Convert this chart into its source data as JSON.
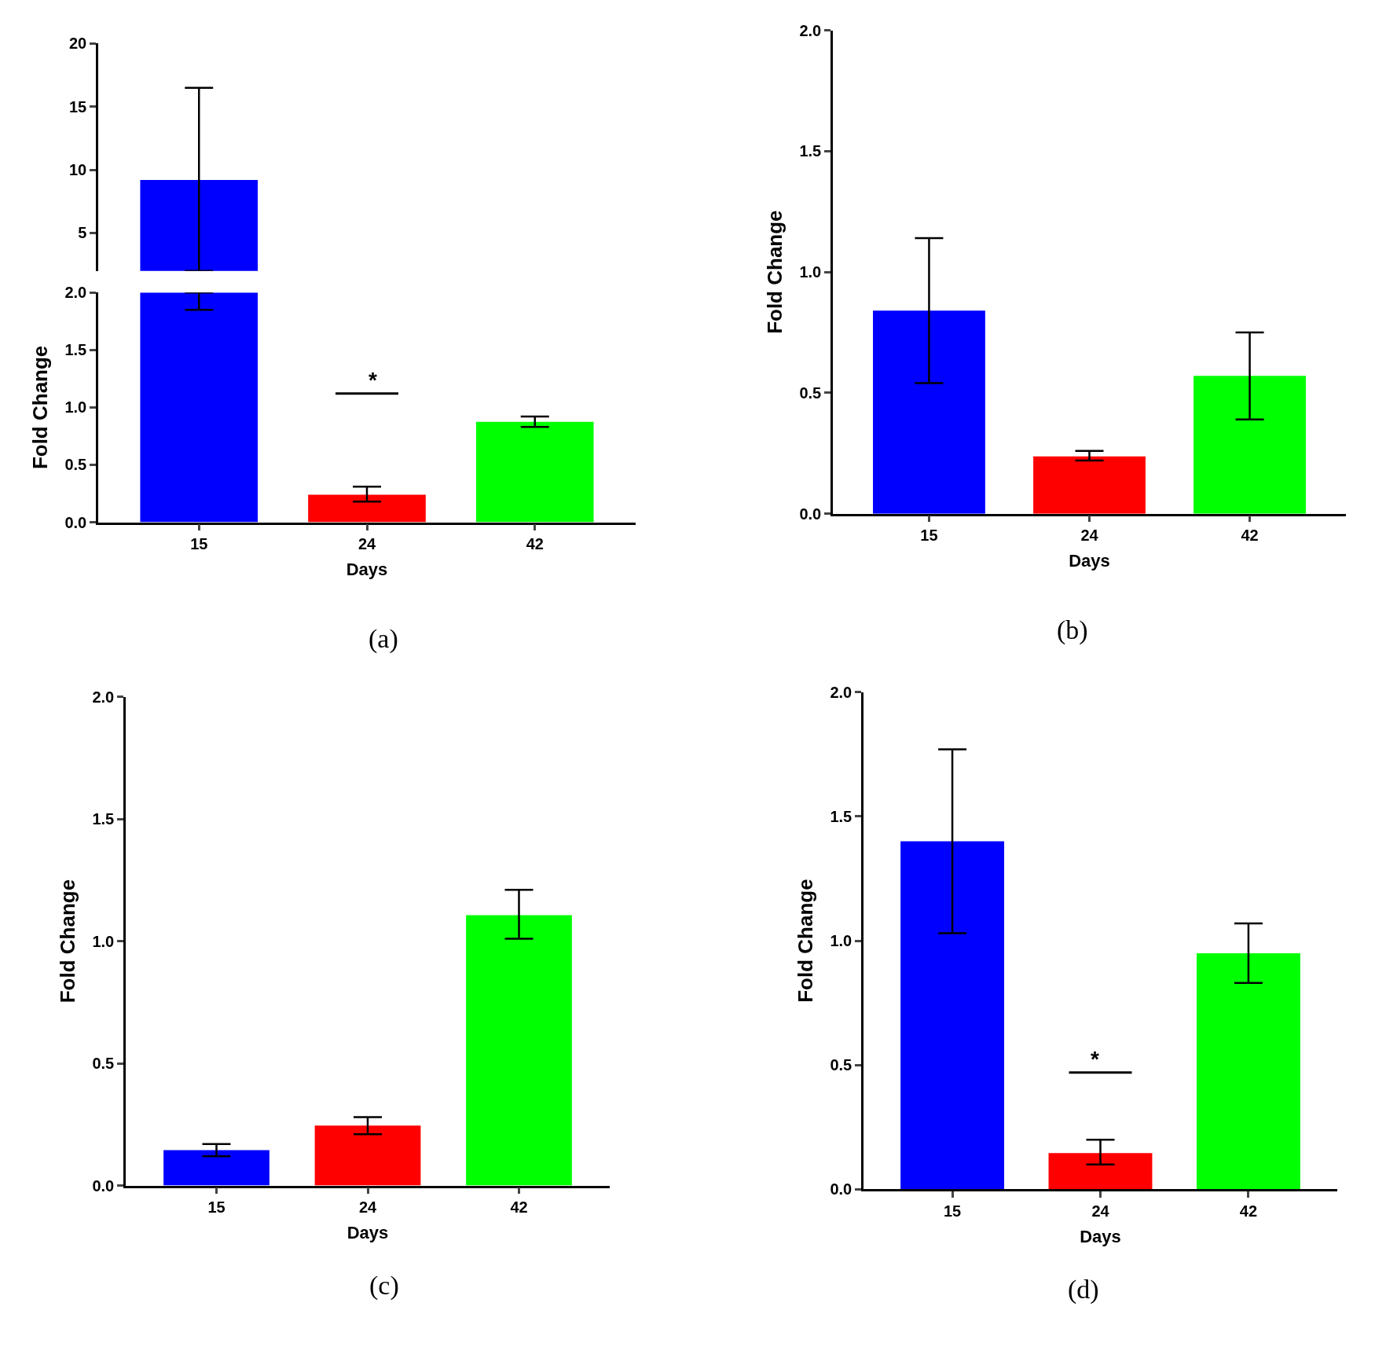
{
  "chart_data": [
    {
      "type": "bar",
      "categories": [
        "15",
        "24",
        "42"
      ],
      "values": [
        9.2,
        null,
        null
      ],
      "colors": [
        "#0000ff",
        "#ff0000",
        "#00ff00"
      ],
      "errors": [
        [
          2,
          16.5
        ],
        null,
        null
      ],
      "ylim": [
        2,
        20
      ],
      "yticks": [
        5,
        10,
        15,
        20
      ],
      "tick_labels": "y"
    },
    {
      "type": "bar",
      "categories": [
        "15",
        "24",
        "42"
      ],
      "values": [
        2.0,
        0.24,
        0.875
      ],
      "colors": [
        "#0000ff",
        "#ff0000",
        "#00ff00"
      ],
      "errors": [
        [
          1.85,
          2.0
        ],
        [
          0.18,
          0.31
        ],
        [
          0.83,
          0.92
        ]
      ],
      "ylim": [
        0,
        2
      ],
      "yticks": [
        {
          "value": 0,
          "label": "0.0"
        },
        {
          "value": 0.5,
          "label": "0.5"
        },
        {
          "value": 1,
          "label": "1.0"
        },
        {
          "value": 1.5,
          "label": "1.5"
        },
        {
          "value": 2,
          "label": "2.0"
        }
      ],
      "xlabel": "Days",
      "ylabel": "Fold Change",
      "annotations": [
        "*",
        "(a)"
      ]
    },
    {
      "type": "bar",
      "categories": [
        "15",
        "24",
        "42"
      ],
      "values": [
        0.84,
        0.237,
        0.57
      ],
      "colors": [
        "#0000ff",
        "#ff0000",
        "#00ff00"
      ],
      "errors": [
        [
          0.54,
          1.14
        ],
        [
          0.22,
          0.26
        ],
        [
          0.39,
          0.75
        ]
      ],
      "ylim": [
        0,
        2
      ],
      "yticks": [
        {
          "value": 0,
          "label": "0.0"
        },
        {
          "value": 0.5,
          "label": "0.5"
        },
        {
          "value": 1,
          "label": "1.0"
        },
        {
          "value": 1.5,
          "label": "1.5"
        },
        {
          "value": 2,
          "label": "2.0"
        }
      ],
      "xlabel": "Days",
      "ylabel": "Fold Change",
      "annotations": [
        "(b)"
      ]
    },
    {
      "type": "bar",
      "categories": [
        "15",
        "24",
        "42"
      ],
      "values": [
        0.145,
        0.245,
        1.106
      ],
      "colors": [
        "#0000ff",
        "#ff0000",
        "#00ff00"
      ],
      "errors": [
        [
          0.12,
          0.17
        ],
        [
          0.21,
          0.28
        ],
        [
          1.01,
          1.21
        ]
      ],
      "ylim": [
        0,
        2
      ],
      "yticks": [
        {
          "value": 0,
          "label": "0.0"
        },
        {
          "value": 0.5,
          "label": "0.5"
        },
        {
          "value": 1,
          "label": "1.0"
        },
        {
          "value": 1.5,
          "label": "1.5"
        },
        {
          "value": 2,
          "label": "2.0"
        }
      ],
      "xlabel": "Days",
      "ylabel": "Fold Change",
      "annotations": [
        "(c)"
      ]
    },
    {
      "type": "bar",
      "categories": [
        "15",
        "24",
        "42"
      ],
      "values": [
        1.4,
        0.146,
        0.95
      ],
      "colors": [
        "#0000ff",
        "#ff0000",
        "#00ff00"
      ],
      "errors": [
        [
          1.03,
          1.77
        ],
        [
          0.1,
          0.2
        ],
        [
          0.83,
          1.07
        ]
      ],
      "ylim": [
        0,
        2
      ],
      "yticks": [
        {
          "value": 0,
          "label": "0.0"
        },
        {
          "value": 0.5,
          "label": "0.5"
        },
        {
          "value": 1,
          "label": "1.0"
        },
        {
          "value": 1.5,
          "label": "1.5"
        },
        {
          "value": 2,
          "label": "2.0"
        }
      ],
      "xlabel": "Days",
      "ylabel": "Fold Change",
      "annotations": [
        "*",
        "(d)"
      ]
    }
  ]
}
